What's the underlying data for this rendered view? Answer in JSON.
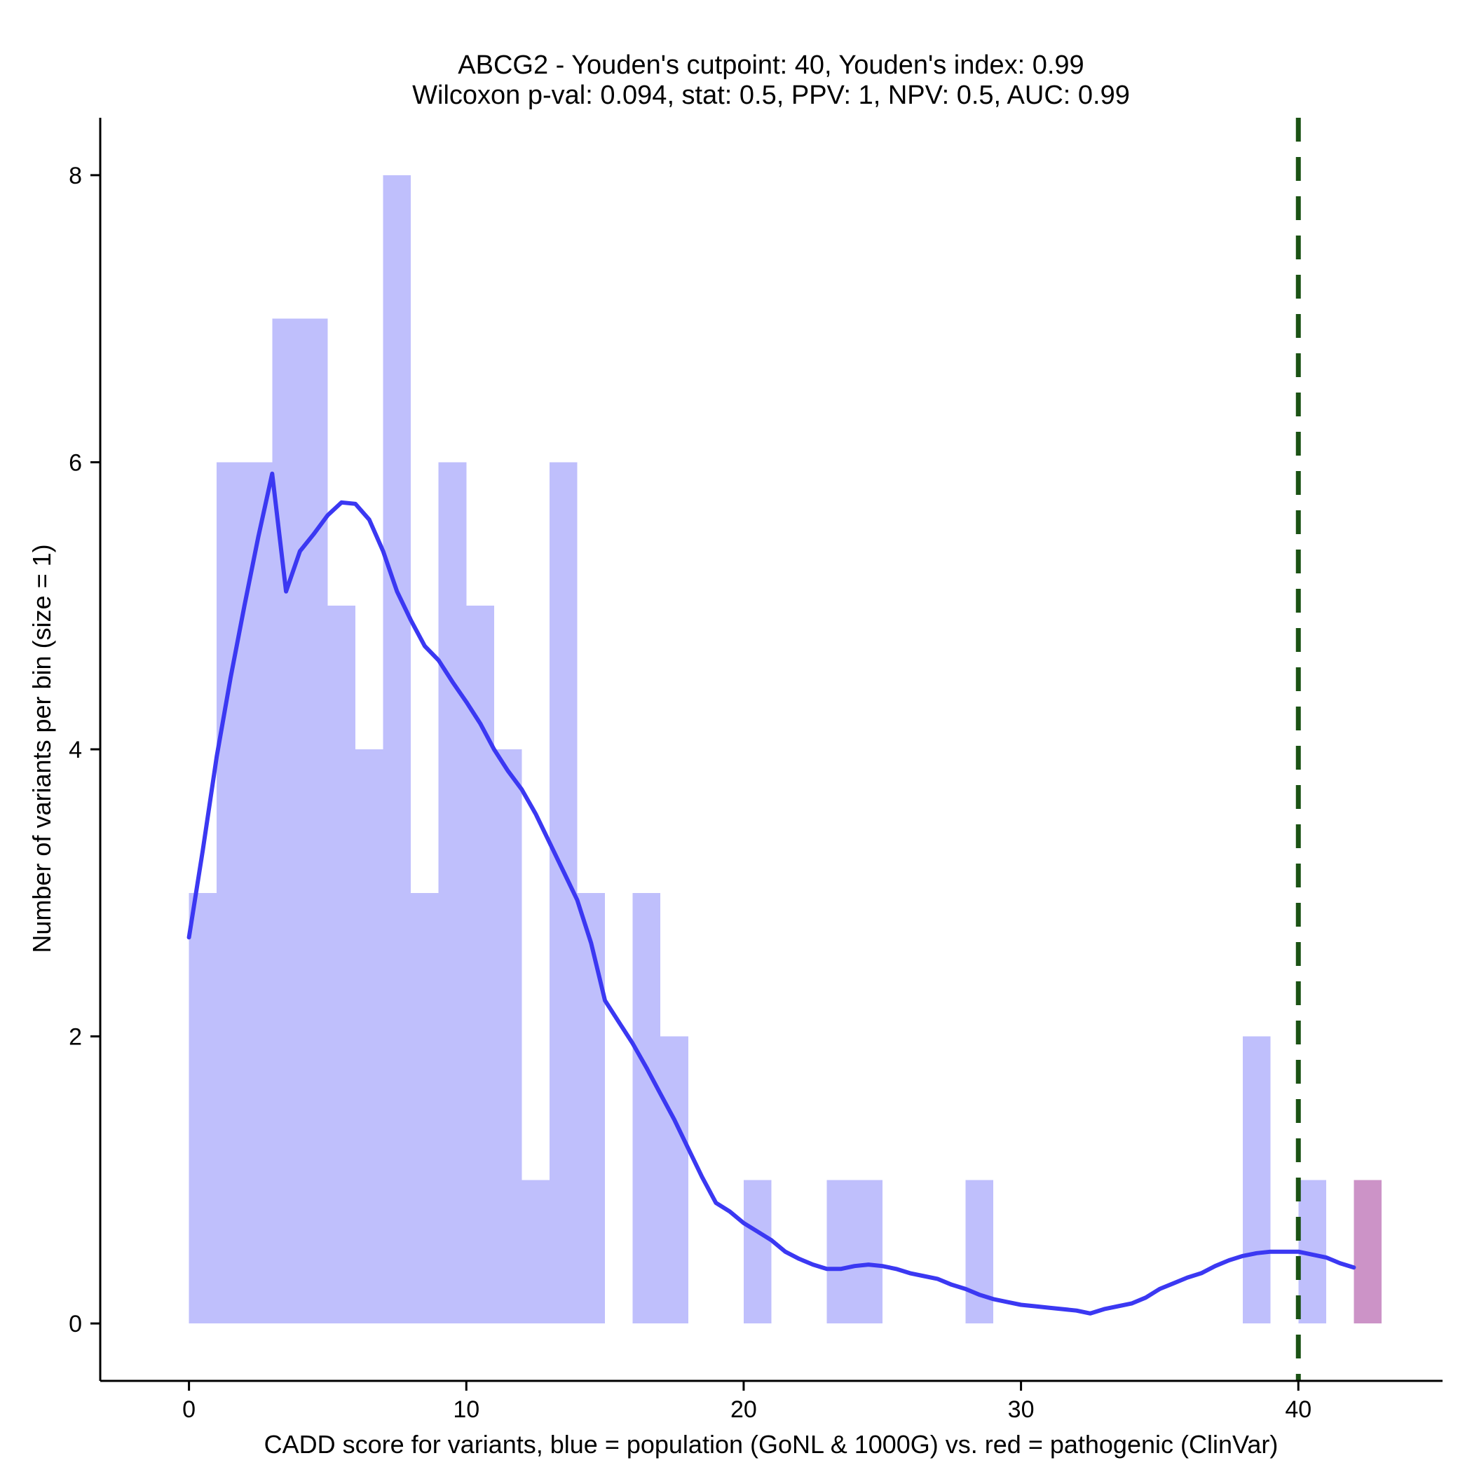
{
  "chart_data": {
    "type": "bar",
    "title": "ABCG2 - Youden's cutpoint: 40, Youden's index: 0.99",
    "subtitle": "Wilcoxon p-val: 0.094, stat: 0.5, PPV: 1, NPV: 0.5, AUC: 0.99",
    "xlabel": "CADD score for variants, blue = population (GoNL & 1000G) vs. red = pathogenic (ClinVar)",
    "ylabel": "Number of variants per bin (size = 1)",
    "xlim": [
      -3.2,
      45.2
    ],
    "ylim": [
      -0.4,
      8.4
    ],
    "x_ticks": [
      0,
      10,
      20,
      30,
      40
    ],
    "y_ticks": [
      0,
      2,
      4,
      6,
      8
    ],
    "bin_width": 1,
    "series": [
      {
        "name": "population (GoNL & 1000G)",
        "color": "#bfbffc",
        "bins": [
          {
            "start": 0,
            "count": 3
          },
          {
            "start": 1,
            "count": 6
          },
          {
            "start": 2,
            "count": 6
          },
          {
            "start": 3,
            "count": 7
          },
          {
            "start": 4,
            "count": 7
          },
          {
            "start": 5,
            "count": 5
          },
          {
            "start": 6,
            "count": 4
          },
          {
            "start": 7,
            "count": 8
          },
          {
            "start": 8,
            "count": 3
          },
          {
            "start": 9,
            "count": 6
          },
          {
            "start": 10,
            "count": 5
          },
          {
            "start": 11,
            "count": 4
          },
          {
            "start": 12,
            "count": 1
          },
          {
            "start": 13,
            "count": 6
          },
          {
            "start": 14,
            "count": 3
          },
          {
            "start": 16,
            "count": 3
          },
          {
            "start": 17,
            "count": 2
          },
          {
            "start": 20,
            "count": 1
          },
          {
            "start": 23,
            "count": 1
          },
          {
            "start": 24,
            "count": 1
          },
          {
            "start": 28,
            "count": 1
          },
          {
            "start": 38,
            "count": 2
          },
          {
            "start": 40,
            "count": 1
          }
        ]
      },
      {
        "name": "pathogenic (ClinVar)",
        "color": "#cc93c7",
        "bins": [
          {
            "start": 42,
            "count": 1
          }
        ]
      }
    ],
    "density_curve": {
      "color": "#3b38f2",
      "points": [
        [
          0,
          2.69
        ],
        [
          0.5,
          3.3
        ],
        [
          1,
          3.95
        ],
        [
          1.5,
          4.5
        ],
        [
          2,
          5.0
        ],
        [
          2.5,
          5.48
        ],
        [
          3,
          5.92
        ],
        [
          3.5,
          5.1
        ],
        [
          4,
          5.38
        ],
        [
          4.5,
          5.5
        ],
        [
          5,
          5.63
        ],
        [
          5.5,
          5.72
        ],
        [
          6,
          5.71
        ],
        [
          6.5,
          5.6
        ],
        [
          7,
          5.38
        ],
        [
          7.5,
          5.1
        ],
        [
          8,
          4.9
        ],
        [
          8.5,
          4.72
        ],
        [
          9,
          4.62
        ],
        [
          9.5,
          4.47
        ],
        [
          10,
          4.33
        ],
        [
          10.5,
          4.18
        ],
        [
          11,
          4.0
        ],
        [
          11.5,
          3.85
        ],
        [
          12,
          3.72
        ],
        [
          12.5,
          3.55
        ],
        [
          13,
          3.35
        ],
        [
          13.5,
          3.15
        ],
        [
          14,
          2.95
        ],
        [
          14.5,
          2.65
        ],
        [
          15,
          2.25
        ],
        [
          15.5,
          2.1
        ],
        [
          16,
          1.95
        ],
        [
          16.5,
          1.78
        ],
        [
          17,
          1.6
        ],
        [
          17.5,
          1.42
        ],
        [
          18,
          1.22
        ],
        [
          18.5,
          1.02
        ],
        [
          19,
          0.84
        ],
        [
          19.5,
          0.78
        ],
        [
          20,
          0.7
        ],
        [
          20.5,
          0.64
        ],
        [
          21,
          0.58
        ],
        [
          21.5,
          0.5
        ],
        [
          22,
          0.45
        ],
        [
          22.5,
          0.41
        ],
        [
          23,
          0.38
        ],
        [
          23.5,
          0.38
        ],
        [
          24,
          0.4
        ],
        [
          24.5,
          0.41
        ],
        [
          25,
          0.4
        ],
        [
          25.5,
          0.38
        ],
        [
          26,
          0.35
        ],
        [
          26.5,
          0.33
        ],
        [
          27,
          0.31
        ],
        [
          27.5,
          0.27
        ],
        [
          28,
          0.24
        ],
        [
          28.5,
          0.2
        ],
        [
          29,
          0.17
        ],
        [
          29.5,
          0.15
        ],
        [
          30,
          0.13
        ],
        [
          30.5,
          0.12
        ],
        [
          31,
          0.11
        ],
        [
          31.5,
          0.1
        ],
        [
          32,
          0.09
        ],
        [
          32.5,
          0.07
        ],
        [
          33,
          0.1
        ],
        [
          33.5,
          0.12
        ],
        [
          34,
          0.14
        ],
        [
          34.5,
          0.18
        ],
        [
          35,
          0.24
        ],
        [
          35.5,
          0.28
        ],
        [
          36,
          0.32
        ],
        [
          36.5,
          0.35
        ],
        [
          37,
          0.4
        ],
        [
          37.5,
          0.44
        ],
        [
          38,
          0.47
        ],
        [
          38.5,
          0.49
        ],
        [
          39,
          0.5
        ],
        [
          39.5,
          0.5
        ],
        [
          40,
          0.5
        ],
        [
          40.5,
          0.48
        ],
        [
          41,
          0.46
        ],
        [
          41.5,
          0.42
        ],
        [
          42,
          0.39
        ]
      ]
    },
    "cutpoint_line": {
      "x": 40,
      "color": "#1b5214",
      "style": "dashed"
    }
  }
}
